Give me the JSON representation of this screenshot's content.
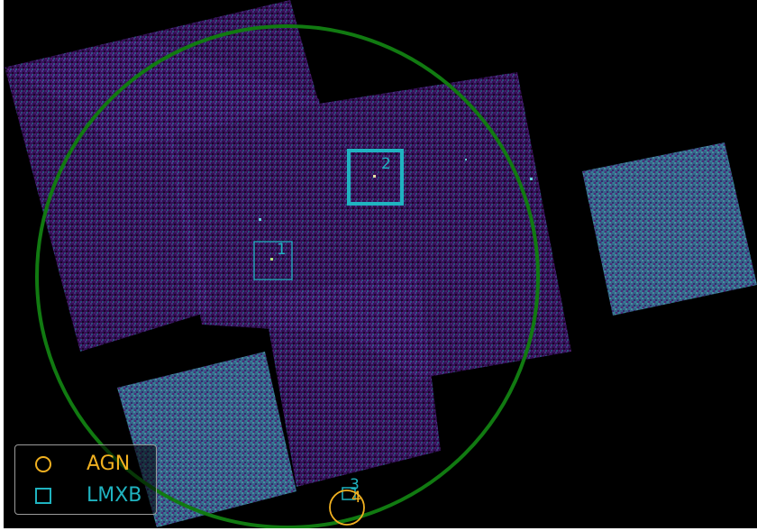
{
  "colors": {
    "background": "#000000",
    "chip_dim": "#3a1160",
    "chip_bright": "#3d7e9c",
    "fov_circle": "#117a11",
    "agn": "#f0b020",
    "lmxb": "#1fb3c0"
  },
  "sources": [
    {
      "id": "1",
      "class": "LMXB",
      "label": "1"
    },
    {
      "id": "2",
      "class": "LMXB",
      "label": "2"
    },
    {
      "id": "3",
      "class": "LMXB",
      "label": "3"
    },
    {
      "id": "4",
      "class": "AGN",
      "label": "4"
    }
  ],
  "legend": {
    "items": [
      {
        "label": "AGN",
        "symbol": "circle-icon"
      },
      {
        "label": "LMXB",
        "symbol": "square-icon"
      }
    ]
  }
}
